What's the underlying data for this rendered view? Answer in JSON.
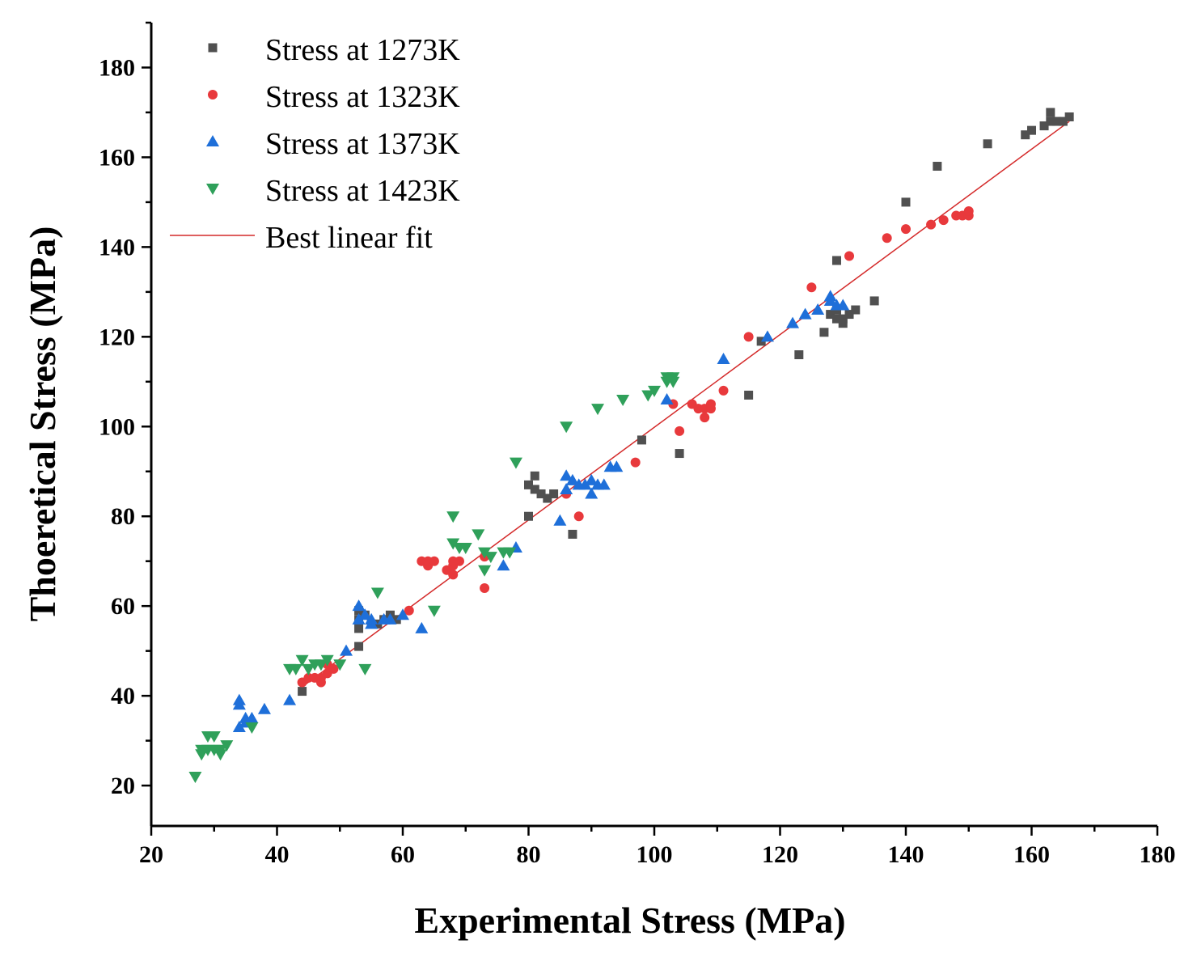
{
  "chart_data": {
    "type": "scatter",
    "title": "",
    "xlabel": "Experimental Stress (MPa)",
    "ylabel": "Thoeretical Stress (MPa)",
    "xlim": [
      20,
      180
    ],
    "ylim": [
      11,
      190
    ],
    "xticks": [
      "20",
      "40",
      "60",
      "80",
      "100",
      "120",
      "140",
      "160",
      "180"
    ],
    "yticks": [
      "20",
      "40",
      "60",
      "80",
      "100",
      "120",
      "140",
      "160",
      "180"
    ],
    "legend_position": "top-left",
    "grid": false,
    "series": [
      {
        "name": "Stress at 1273K",
        "marker": "square",
        "color": "#505050",
        "points": [
          [
            44,
            41
          ],
          [
            53,
            51
          ],
          [
            53,
            55
          ],
          [
            53,
            57
          ],
          [
            53,
            59
          ],
          [
            54,
            58
          ],
          [
            55,
            56
          ],
          [
            56,
            56
          ],
          [
            57,
            57
          ],
          [
            58,
            58
          ],
          [
            59,
            57
          ],
          [
            80,
            80
          ],
          [
            80,
            87
          ],
          [
            81,
            86
          ],
          [
            81,
            89
          ],
          [
            82,
            85
          ],
          [
            83,
            84
          ],
          [
            84,
            85
          ],
          [
            87,
            76
          ],
          [
            98,
            97
          ],
          [
            104,
            94
          ],
          [
            115,
            107
          ],
          [
            117,
            119
          ],
          [
            123,
            116
          ],
          [
            127,
            121
          ],
          [
            128,
            125
          ],
          [
            129,
            124
          ],
          [
            129,
            126
          ],
          [
            129,
            137
          ],
          [
            130,
            123
          ],
          [
            130,
            124
          ],
          [
            131,
            125
          ],
          [
            132,
            126
          ],
          [
            135,
            128
          ],
          [
            140,
            150
          ],
          [
            145,
            158
          ],
          [
            153,
            163
          ],
          [
            159,
            165
          ],
          [
            160,
            166
          ],
          [
            162,
            167
          ],
          [
            163,
            168
          ],
          [
            163,
            170
          ],
          [
            164,
            168
          ],
          [
            165,
            168
          ],
          [
            166,
            169
          ]
        ]
      },
      {
        "name": "Stress at 1323K",
        "marker": "circle",
        "color": "#e8393c",
        "points": [
          [
            44,
            43
          ],
          [
            45,
            44
          ],
          [
            46,
            44
          ],
          [
            47,
            43
          ],
          [
            47,
            44
          ],
          [
            48,
            45
          ],
          [
            48,
            47
          ],
          [
            49,
            46
          ],
          [
            61,
            59
          ],
          [
            63,
            70
          ],
          [
            64,
            69
          ],
          [
            64,
            70
          ],
          [
            65,
            70
          ],
          [
            67,
            68
          ],
          [
            68,
            67
          ],
          [
            68,
            69
          ],
          [
            68,
            70
          ],
          [
            69,
            70
          ],
          [
            73,
            64
          ],
          [
            73,
            71
          ],
          [
            86,
            85
          ],
          [
            88,
            80
          ],
          [
            97,
            92
          ],
          [
            103,
            105
          ],
          [
            104,
            99
          ],
          [
            106,
            105
          ],
          [
            107,
            104
          ],
          [
            108,
            102
          ],
          [
            108,
            104
          ],
          [
            109,
            104
          ],
          [
            109,
            105
          ],
          [
            111,
            108
          ],
          [
            115,
            120
          ],
          [
            125,
            131
          ],
          [
            131,
            138
          ],
          [
            137,
            142
          ],
          [
            140,
            144
          ],
          [
            144,
            145
          ],
          [
            146,
            146
          ],
          [
            148,
            147
          ],
          [
            149,
            147
          ],
          [
            150,
            147
          ],
          [
            150,
            148
          ]
        ]
      },
      {
        "name": "Stress at 1373K",
        "marker": "triangle-up",
        "color": "#1e6fd9",
        "points": [
          [
            34,
            33
          ],
          [
            34,
            38
          ],
          [
            34,
            39
          ],
          [
            35,
            34
          ],
          [
            35,
            35
          ],
          [
            36,
            35
          ],
          [
            38,
            37
          ],
          [
            42,
            39
          ],
          [
            51,
            50
          ],
          [
            53,
            57
          ],
          [
            53,
            60
          ],
          [
            54,
            58
          ],
          [
            55,
            57
          ],
          [
            55,
            56
          ],
          [
            57,
            57
          ],
          [
            58,
            57
          ],
          [
            60,
            58
          ],
          [
            63,
            55
          ],
          [
            76,
            69
          ],
          [
            78,
            73
          ],
          [
            85,
            79
          ],
          [
            86,
            86
          ],
          [
            86,
            89
          ],
          [
            87,
            88
          ],
          [
            88,
            87
          ],
          [
            89,
            87
          ],
          [
            90,
            85
          ],
          [
            90,
            88
          ],
          [
            91,
            87
          ],
          [
            92,
            87
          ],
          [
            93,
            91
          ],
          [
            94,
            91
          ],
          [
            102,
            106
          ],
          [
            111,
            115
          ],
          [
            118,
            120
          ],
          [
            122,
            123
          ],
          [
            124,
            125
          ],
          [
            126,
            126
          ],
          [
            128,
            128
          ],
          [
            128,
            129
          ],
          [
            129,
            127
          ],
          [
            130,
            127
          ]
        ]
      },
      {
        "name": "Stress at 1423K",
        "marker": "triangle-down",
        "color": "#2fa05a",
        "points": [
          [
            27,
            22
          ],
          [
            28,
            27
          ],
          [
            28,
            28
          ],
          [
            29,
            31
          ],
          [
            29,
            28
          ],
          [
            30,
            31
          ],
          [
            30,
            28
          ],
          [
            31,
            28
          ],
          [
            31,
            27
          ],
          [
            32,
            29
          ],
          [
            36,
            33
          ],
          [
            42,
            46
          ],
          [
            43,
            46
          ],
          [
            44,
            48
          ],
          [
            45,
            46
          ],
          [
            46,
            47
          ],
          [
            47,
            47
          ],
          [
            48,
            48
          ],
          [
            50,
            47
          ],
          [
            54,
            46
          ],
          [
            56,
            63
          ],
          [
            65,
            59
          ],
          [
            68,
            80
          ],
          [
            68,
            74
          ],
          [
            69,
            73
          ],
          [
            70,
            73
          ],
          [
            72,
            76
          ],
          [
            73,
            68
          ],
          [
            73,
            72
          ],
          [
            74,
            71
          ],
          [
            76,
            72
          ],
          [
            77,
            72
          ],
          [
            78,
            92
          ],
          [
            86,
            100
          ],
          [
            91,
            104
          ],
          [
            95,
            106
          ],
          [
            99,
            107
          ],
          [
            100,
            108
          ],
          [
            102,
            110
          ],
          [
            102,
            111
          ],
          [
            103,
            110
          ],
          [
            103,
            111
          ]
        ]
      },
      {
        "name": "Best linear fit",
        "marker": "line",
        "color": "#d42a2a",
        "points": [
          [
            44,
            42
          ],
          [
            166,
            168
          ]
        ]
      }
    ]
  }
}
